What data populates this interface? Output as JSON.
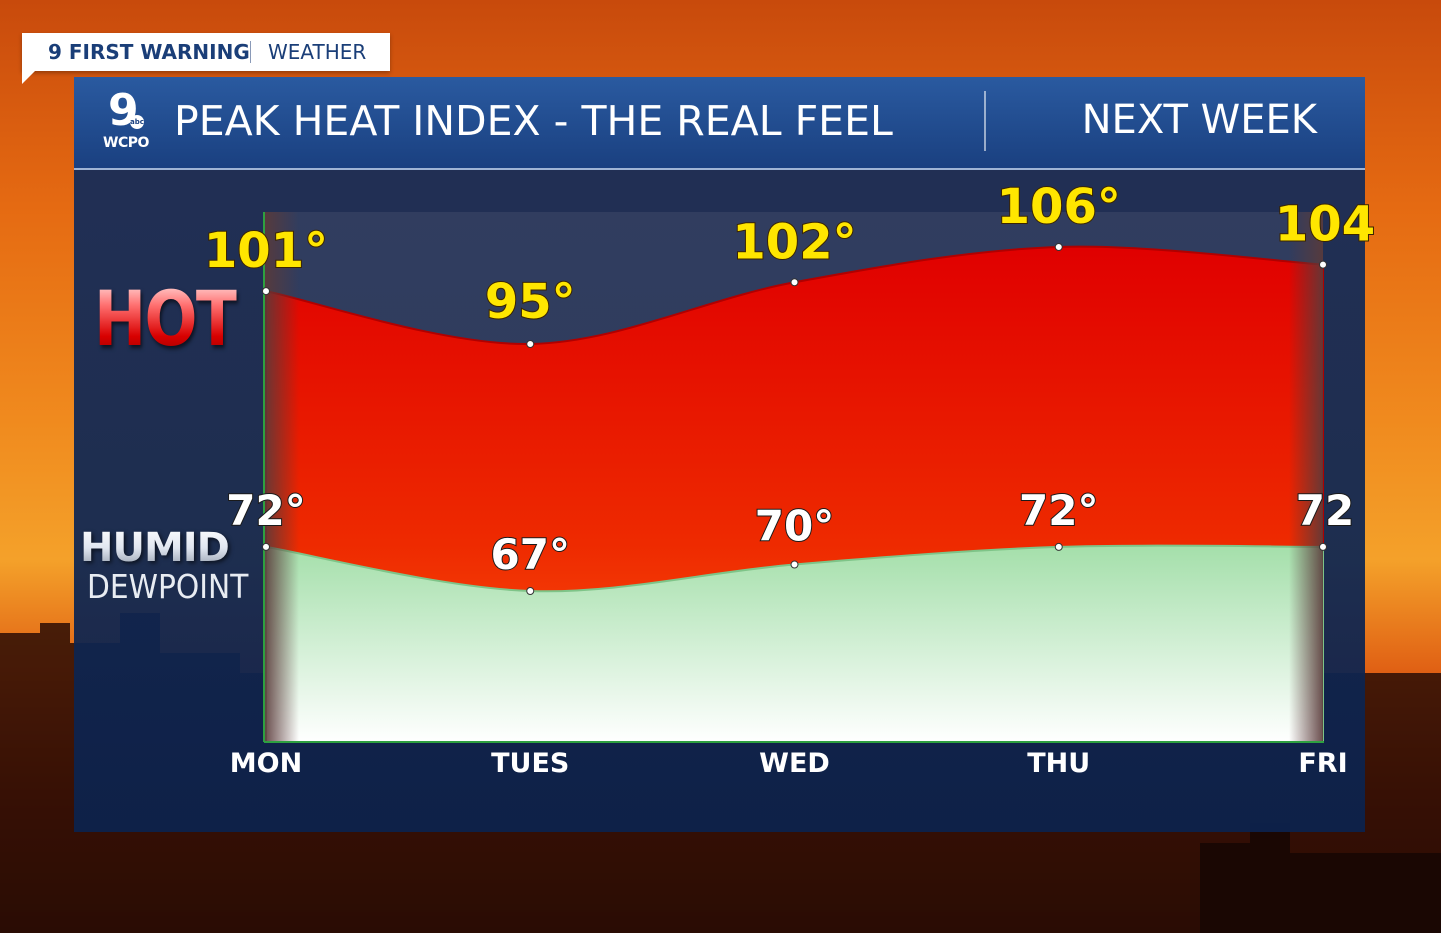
{
  "brand": {
    "left": "9 FIRST WARNING",
    "right": "WEATHER"
  },
  "logo": {
    "number": "9",
    "network": "abc",
    "station": "WCPO"
  },
  "header": {
    "title": "PEAK HEAT INDEX - THE REAL FEEL",
    "subtitle": "NEXT WEEK"
  },
  "legend": {
    "hot": "HOT",
    "humid": "HUMID",
    "dewpoint": "DEWPOINT"
  },
  "colors": {
    "heat": "#e81400",
    "dewpoint": "#a9e2b0",
    "label_heat": "#ffe600",
    "panel": "#12306a"
  },
  "chart_data": {
    "type": "area",
    "categories": [
      "MON",
      "TUES",
      "WED",
      "THU",
      "FRI"
    ],
    "series": [
      {
        "values": [
          101,
          95,
          102,
          106,
          104
        ],
        "labels": [
          "101°",
          "95°",
          "102°",
          "106°",
          "104"
        ]
      },
      {
        "values": [
          72,
          67,
          70,
          72,
          72
        ],
        "labels": [
          "72°",
          "67°",
          "70°",
          "72°",
          "72"
        ]
      }
    ]
  }
}
